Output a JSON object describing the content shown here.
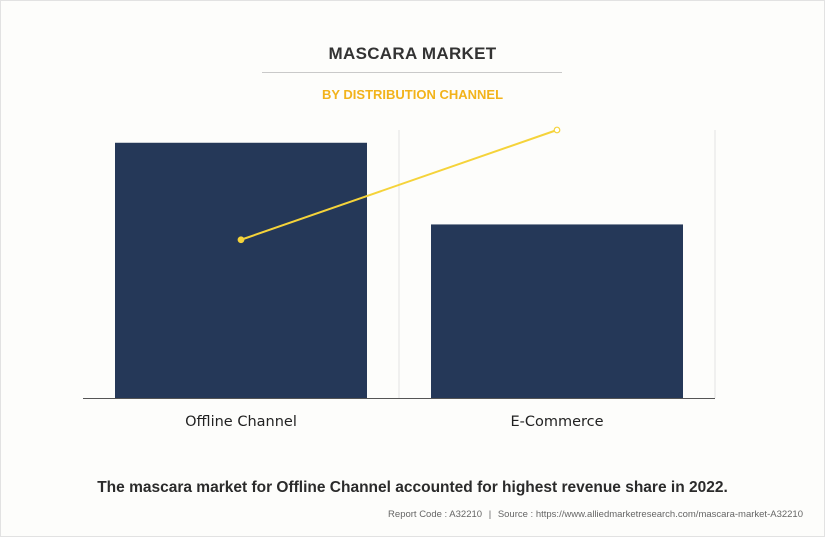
{
  "header": {
    "title": "MASCARA MARKET",
    "subtitle": "BY DISTRIBUTION CHANNEL"
  },
  "colors": {
    "bar": "#253858",
    "line": "#f5d33a",
    "subtitle": "#f2b31b"
  },
  "chart_data": {
    "type": "bar",
    "categories": [
      "Offline Channel",
      "E-Commerce"
    ],
    "values": [
      100,
      68
    ],
    "overlay_line": {
      "type": "line",
      "values": [
        62,
        105
      ]
    },
    "ylim": [
      0,
      105
    ],
    "grid": "vertical",
    "xlabel": "",
    "ylabel": ""
  },
  "caption": "The mascara market for Offline Channel accounted for highest revenue share in 2022.",
  "footer": {
    "report_code": "Report Code : A32210",
    "separator": "|",
    "source": "Source : https://www.alliedmarketresearch.com/mascara-market-A32210"
  }
}
